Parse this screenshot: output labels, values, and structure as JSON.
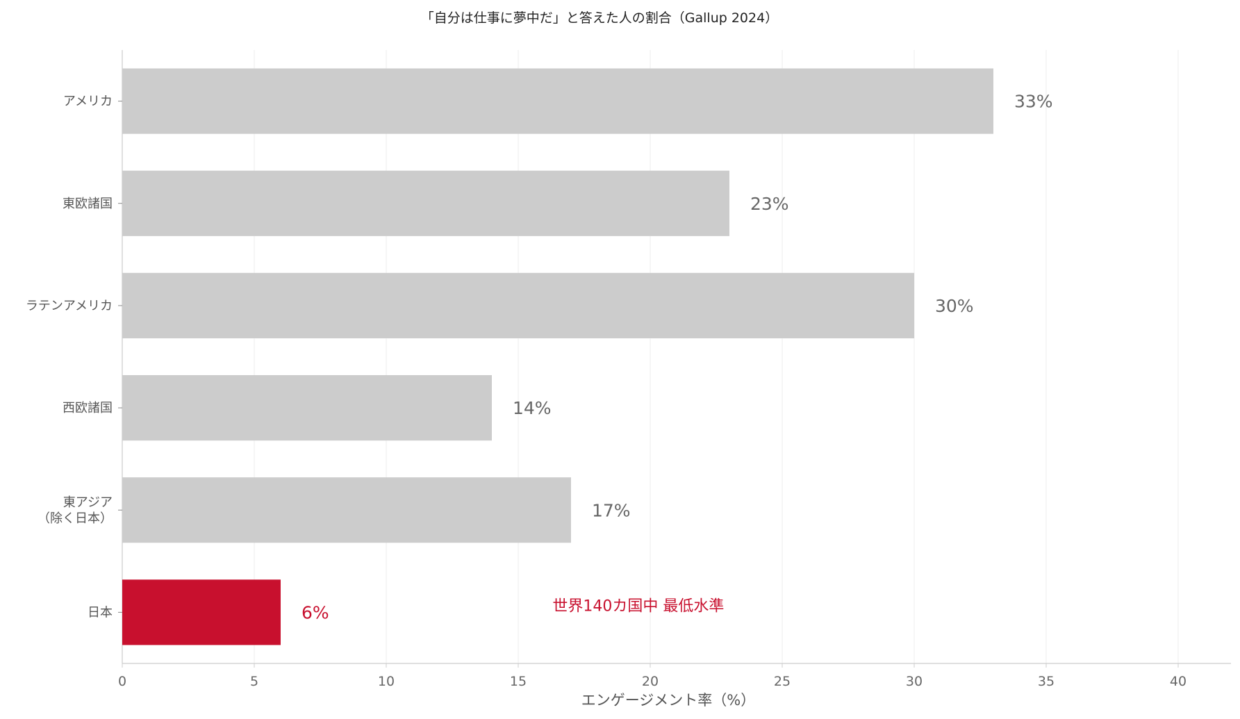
{
  "chart_data": {
    "type": "bar",
    "orientation": "horizontal",
    "title": "「自分は仕事に夢中だ」と答えた人の割合（Gallup 2024）",
    "xlabel": "エンゲージメント率（%）",
    "ylabel": "",
    "xlim": [
      0,
      42
    ],
    "xticks": [
      "0",
      "5",
      "10",
      "15",
      "20",
      "25",
      "30",
      "35",
      "40"
    ],
    "grid": "vertical",
    "categories": [
      {
        "label": [
          "アメリカ"
        ],
        "value": 33,
        "value_label": "33%",
        "highlight": false
      },
      {
        "label": [
          "東欧諸国"
        ],
        "value": 23,
        "value_label": "23%",
        "highlight": false
      },
      {
        "label": [
          "ラテンアメリカ"
        ],
        "value": 30,
        "value_label": "30%",
        "highlight": false
      },
      {
        "label": [
          "西欧諸国"
        ],
        "value": 14,
        "value_label": "14%",
        "highlight": false
      },
      {
        "label": [
          "東アジア",
          "（除く日本）"
        ],
        "value": 17,
        "value_label": "17%",
        "highlight": false
      },
      {
        "label": [
          "日本"
        ],
        "value": 6,
        "value_label": "6%",
        "highlight": true
      }
    ],
    "annotation": {
      "text": "世界140カ国中 最低水準",
      "x": 16.3,
      "category_index": 5
    },
    "colors": {
      "bar": "#cccccc",
      "highlight": "#c8102e",
      "value_label": "#666666",
      "highlight_label": "#c8102e",
      "grid": "#eeeeee",
      "axis": "#cccccc"
    }
  }
}
